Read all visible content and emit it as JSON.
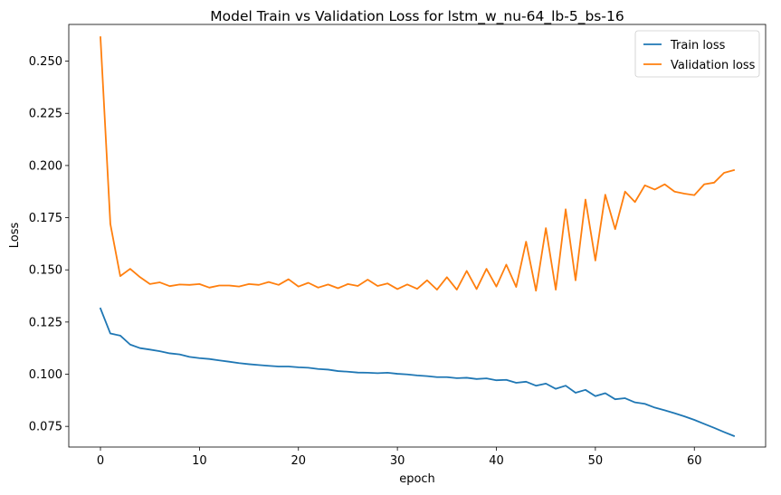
{
  "chart_data": {
    "type": "line",
    "title": "Model Train vs Validation Loss for lstm_w_nu-64_lb-5_bs-16",
    "xlabel": "epoch",
    "ylabel": "Loss",
    "xlim": [
      -3.2,
      67.2
    ],
    "ylim": [
      0.0651,
      0.2676
    ],
    "xticks": [
      0,
      10,
      20,
      30,
      40,
      50,
      60
    ],
    "yticks": [
      0.075,
      0.1,
      0.125,
      0.15,
      0.175,
      0.2,
      0.225,
      0.25
    ],
    "ytick_labels": [
      "0.075",
      "0.100",
      "0.125",
      "0.150",
      "0.175",
      "0.200",
      "0.225",
      "0.250"
    ],
    "grid": false,
    "legend_position": "top-right",
    "series": [
      {
        "name": "Train loss",
        "color": "#1f77b4",
        "values": [
          0.1315,
          0.1195,
          0.1185,
          0.1142,
          0.1125,
          0.1118,
          0.111,
          0.11,
          0.1095,
          0.1083,
          0.1077,
          0.1073,
          0.1066,
          0.106,
          0.1053,
          0.1048,
          0.1044,
          0.104,
          0.1037,
          0.1037,
          0.1033,
          0.1031,
          0.1025,
          0.1022,
          0.1015,
          0.1012,
          0.1008,
          0.1007,
          0.1005,
          0.1007,
          0.1002,
          0.0999,
          0.0994,
          0.0991,
          0.0986,
          0.0986,
          0.0981,
          0.0983,
          0.0977,
          0.098,
          0.0971,
          0.0973,
          0.0959,
          0.0964,
          0.0945,
          0.0955,
          0.093,
          0.0945,
          0.0911,
          0.0925,
          0.0895,
          0.0909,
          0.088,
          0.0885,
          0.0865,
          0.0858,
          0.084,
          0.0827,
          0.0813,
          0.0798,
          0.0781,
          0.0762,
          0.0743,
          0.0723,
          0.0704
        ]
      },
      {
        "name": "Validation loss",
        "color": "#ff7f0e",
        "values": [
          0.2615,
          0.172,
          0.147,
          0.1505,
          0.1465,
          0.1432,
          0.144,
          0.1422,
          0.143,
          0.1428,
          0.1432,
          0.1415,
          0.1425,
          0.1425,
          0.142,
          0.1432,
          0.1428,
          0.1442,
          0.1428,
          0.1455,
          0.142,
          0.1438,
          0.1415,
          0.143,
          0.1412,
          0.1432,
          0.1423,
          0.1453,
          0.1423,
          0.1435,
          0.1408,
          0.143,
          0.1409,
          0.145,
          0.1405,
          0.1465,
          0.1405,
          0.1495,
          0.1408,
          0.1505,
          0.142,
          0.1525,
          0.1418,
          0.1635,
          0.14,
          0.17,
          0.1405,
          0.179,
          0.145,
          0.1837,
          0.1545,
          0.186,
          0.1695,
          0.1875,
          0.1825,
          0.1905,
          0.1885,
          0.191,
          0.1875,
          0.1865,
          0.1858,
          0.191,
          0.1918,
          0.1965,
          0.1978
        ]
      }
    ]
  }
}
